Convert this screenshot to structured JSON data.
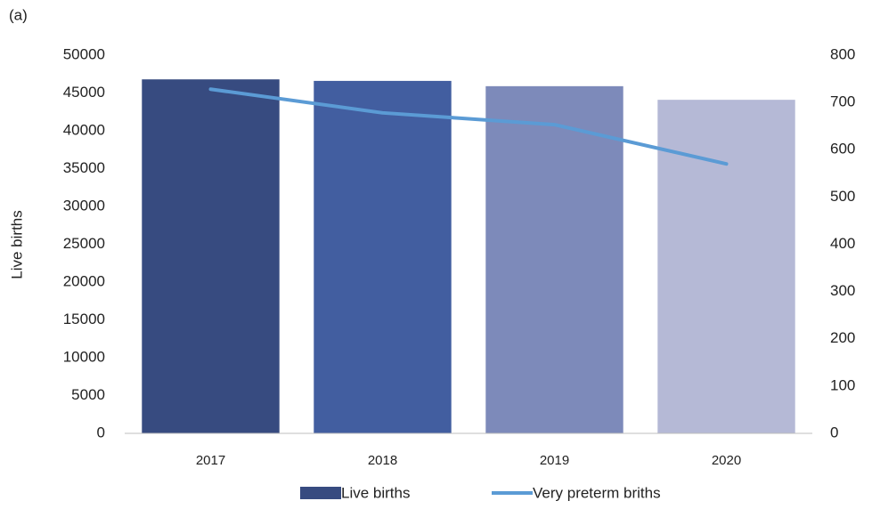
{
  "chart_data": {
    "type": "bar-line",
    "label": "(a)",
    "y_label": "Live births",
    "categories": [
      "2017",
      "2018",
      "2019",
      "2020"
    ],
    "series": [
      {
        "name": "Live births",
        "type": "bar",
        "axis": "y",
        "color": "#374b80",
        "colors": [
          "#374b80",
          "#425ea0",
          "#7d8aba",
          "#b5b9d6"
        ],
        "values": [
          46800,
          46600,
          45900,
          44100
        ]
      },
      {
        "name": "Very preterm briths",
        "type": "line",
        "axis": "y2",
        "color": "#5b9bd5",
        "values": [
          728,
          678,
          653,
          570
        ]
      }
    ],
    "ylim": [
      0,
      50000
    ],
    "yticks": [
      0,
      5000,
      10000,
      15000,
      20000,
      25000,
      30000,
      35000,
      40000,
      45000,
      50000
    ],
    "y2lim": [
      0,
      800
    ],
    "y2ticks": [
      0,
      100,
      200,
      300,
      400,
      500,
      600,
      700,
      800
    ],
    "grid": false,
    "legend": "bottom"
  }
}
